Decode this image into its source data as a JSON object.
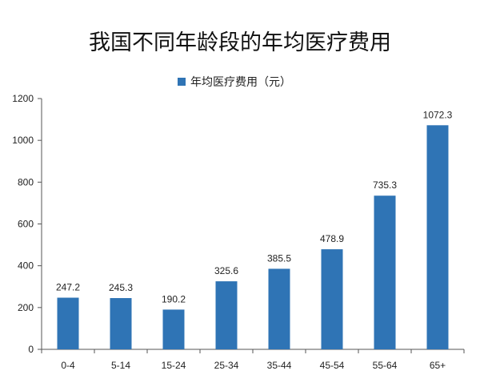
{
  "title": "我国不同年龄段的年均医疗费用",
  "colors": {
    "bar": "#2f74b5",
    "axis": "#555555"
  },
  "chart_data": {
    "type": "bar",
    "title": "我国不同年龄段的年均医疗费用",
    "xlabel": "",
    "ylabel": "",
    "categories": [
      "0-4",
      "5-14",
      "15-24",
      "25-34",
      "35-44",
      "45-54",
      "55-64",
      "65+"
    ],
    "series": [
      {
        "name": "年均医疗费用（元）",
        "values": [
          247.2,
          245.3,
          190.2,
          325.6,
          385.5,
          478.9,
          735.3,
          1072.3
        ]
      }
    ],
    "data_labels": [
      "247.2",
      "245.3",
      "190.2",
      "325.6",
      "385.5",
      "478.9",
      "735.3",
      "1072.3"
    ],
    "ylim": [
      0,
      1200
    ],
    "yticks": [
      0,
      200,
      400,
      600,
      800,
      1000,
      1200
    ],
    "grid": false,
    "legend_position": "top"
  }
}
